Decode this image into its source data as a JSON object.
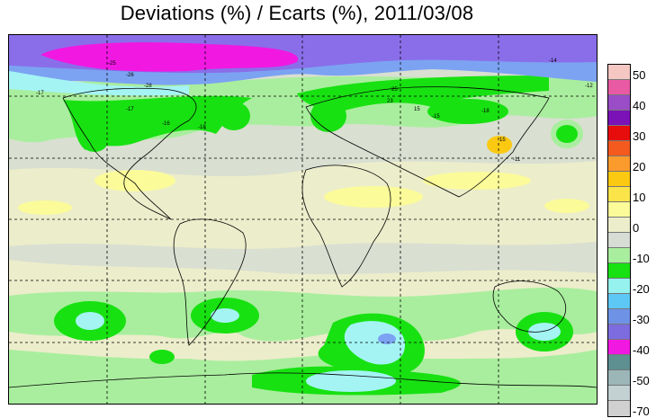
{
  "title": "Deviations (%) / Ecarts (%), 2011/03/08",
  "legend": {
    "bins": [
      {
        "color": "#f4c7c3"
      },
      {
        "color": "#e85aa4"
      },
      {
        "color": "#9a4dc6"
      },
      {
        "color": "#7a12b8"
      },
      {
        "color": "#e80d0d"
      },
      {
        "color": "#f45a1d"
      },
      {
        "color": "#fb9b2d"
      },
      {
        "color": "#fbc911"
      },
      {
        "color": "#fbe44a"
      },
      {
        "color": "#fbfb9a"
      },
      {
        "color": "#ecedcb"
      },
      {
        "color": "#d7ddd5"
      },
      {
        "color": "#a9ee9e"
      },
      {
        "color": "#18e112"
      },
      {
        "color": "#96f2ee"
      },
      {
        "color": "#5dc8f5"
      },
      {
        "color": "#6e93e6"
      },
      {
        "color": "#7d6cdf"
      },
      {
        "color": "#f118e2"
      },
      {
        "color": "#5e8f91"
      },
      {
        "color": "#9cb6b8"
      },
      {
        "color": "#c3d1d3"
      },
      {
        "color": "#d0d0d0"
      }
    ],
    "labels": [
      "50",
      "40",
      "30",
      "20",
      "10",
      "0",
      "-10",
      "-20",
      "-30",
      "-40",
      "-50",
      "-70"
    ]
  },
  "colors": {
    "magenta": "#f118e2",
    "purple": "#8a6ee9",
    "blue": "#7ca3f2",
    "cyan": "#a4f4f4",
    "green": "#18e112",
    "lightgreen": "#a9ee9e",
    "yellow": "#fbfb9a",
    "beige": "#ecedcb",
    "orange": "#fbc911",
    "gray": "#d9dfd1"
  },
  "map_labels": [
    "-25",
    "-26",
    "-28",
    "-14",
    "-12",
    "-17",
    "25",
    "23",
    "-17",
    "15",
    "-18",
    "-16",
    "-18",
    "-15",
    "15",
    "-11"
  ]
}
